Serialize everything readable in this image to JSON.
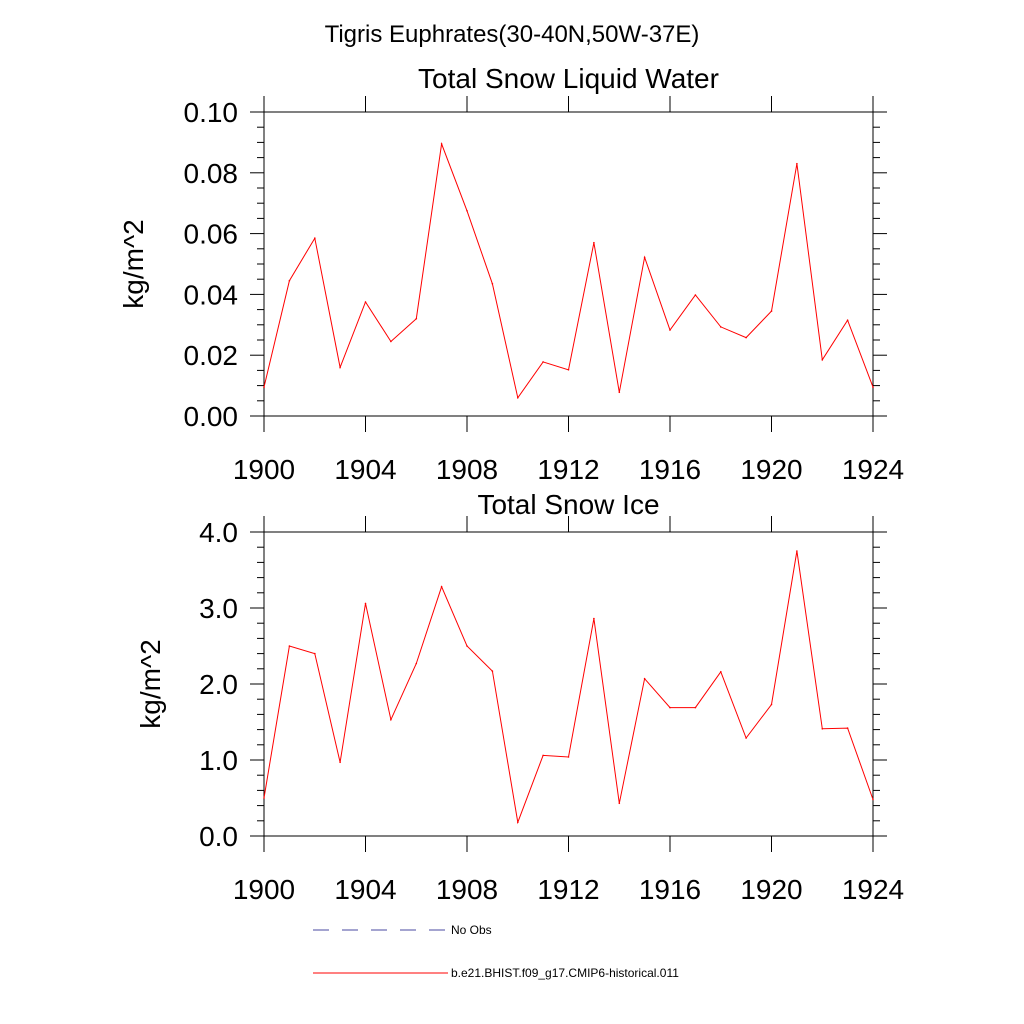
{
  "figure": {
    "title": "Tigris Euphrates(30-40N,50W-37E)",
    "line_color": "#ff0000",
    "obs_color": "#4a4aa0"
  },
  "legend": {
    "obs_label": "No Obs",
    "model_label": "b.e21.BHIST.f09_g17.CMIP6-historical.011"
  },
  "chart_data": [
    {
      "type": "line",
      "title": "Total Snow Liquid Water",
      "xlabel": "",
      "ylabel": "kg/m^2",
      "xlim": [
        1900,
        1924
      ],
      "ylim": [
        0,
        0.1
      ],
      "x_ticks": [
        1900,
        1904,
        1908,
        1912,
        1916,
        1920,
        1924
      ],
      "y_ticks": [
        "0.00",
        "0.02",
        "0.04",
        "0.06",
        "0.08",
        "0.10"
      ],
      "grid": false,
      "series": [
        {
          "name": "b.e21.BHIST.f09_g17.CMIP6-historical.011",
          "x": [
            1900,
            1901,
            1902,
            1903,
            1904,
            1905,
            1906,
            1907,
            1908,
            1909,
            1910,
            1911,
            1912,
            1913,
            1914,
            1915,
            1916,
            1917,
            1918,
            1919,
            1920,
            1921,
            1922,
            1923,
            1924
          ],
          "values": [
            0.0095,
            0.0445,
            0.0585,
            0.016,
            0.0375,
            0.0245,
            0.032,
            0.0895,
            0.0675,
            0.0435,
            0.006,
            0.0178,
            0.0152,
            0.057,
            0.0078,
            0.0522,
            0.0283,
            0.0398,
            0.0293,
            0.0258,
            0.0345,
            0.083,
            0.0185,
            0.0315,
            0.0095
          ]
        }
      ]
    },
    {
      "type": "line",
      "title": "Total Snow Ice",
      "xlabel": "",
      "ylabel": "kg/m^2",
      "xlim": [
        1900,
        1924
      ],
      "ylim": [
        0,
        4
      ],
      "x_ticks": [
        1900,
        1904,
        1908,
        1912,
        1916,
        1920,
        1924
      ],
      "y_ticks": [
        "0.0",
        "1.0",
        "2.0",
        "3.0",
        "4.0"
      ],
      "grid": false,
      "series": [
        {
          "name": "b.e21.BHIST.f09_g17.CMIP6-historical.011",
          "x": [
            1900,
            1901,
            1902,
            1903,
            1904,
            1905,
            1906,
            1907,
            1908,
            1909,
            1910,
            1911,
            1912,
            1913,
            1914,
            1915,
            1916,
            1917,
            1918,
            1919,
            1920,
            1921,
            1922,
            1923,
            1924
          ],
          "values": [
            0.5,
            2.5,
            2.4,
            0.97,
            3.06,
            1.53,
            2.27,
            3.28,
            2.5,
            2.17,
            0.18,
            1.06,
            1.04,
            2.86,
            0.43,
            2.07,
            1.69,
            1.69,
            2.16,
            1.29,
            1.73,
            3.75,
            1.41,
            1.42,
            0.48
          ]
        }
      ]
    }
  ]
}
